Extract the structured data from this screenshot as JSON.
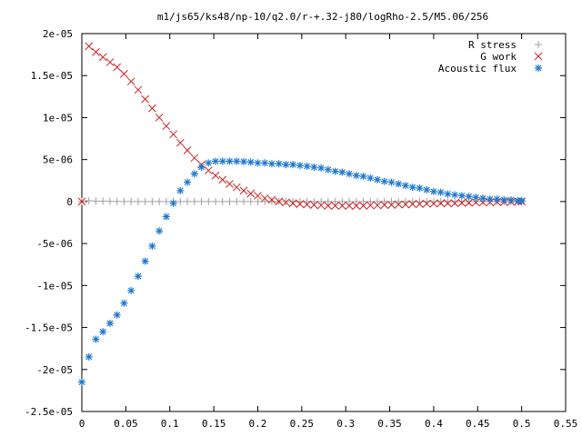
{
  "chart_data": {
    "type": "scatter",
    "title": "m1/js65/ks48/np-10/q2.0/r-+.32-j80/logRho-2.5/M5.06/256",
    "xlim": [
      0,
      0.55
    ],
    "ylim": [
      -2.5e-05,
      2e-05
    ],
    "x_ticks": [
      {
        "v": 0,
        "label": "0"
      },
      {
        "v": 0.05,
        "label": "0.05"
      },
      {
        "v": 0.1,
        "label": "0.1"
      },
      {
        "v": 0.15,
        "label": "0.15"
      },
      {
        "v": 0.2,
        "label": "0.2"
      },
      {
        "v": 0.25,
        "label": "0.25"
      },
      {
        "v": 0.3,
        "label": "0.3"
      },
      {
        "v": 0.35,
        "label": "0.35"
      },
      {
        "v": 0.4,
        "label": "0.4"
      },
      {
        "v": 0.45,
        "label": "0.45"
      },
      {
        "v": 0.5,
        "label": "0.5"
      },
      {
        "v": 0.55,
        "label": "0.55"
      }
    ],
    "y_ticks": [
      {
        "v": 2e-05,
        "label": "2e-05"
      },
      {
        "v": 1.5e-05,
        "label": "1.5e-05"
      },
      {
        "v": 1e-05,
        "label": "1e-05"
      },
      {
        "v": 5e-06,
        "label": "5e-06"
      },
      {
        "v": 0,
        "label": "0"
      },
      {
        "v": -5e-06,
        "label": "-5e-06"
      },
      {
        "v": -1e-05,
        "label": "-1e-05"
      },
      {
        "v": -1.5e-05,
        "label": "-1.5e-05"
      },
      {
        "v": -2e-05,
        "label": "-2e-05"
      },
      {
        "v": -2.5e-05,
        "label": "-2.5e-05"
      }
    ],
    "grid": false,
    "legend_position": "top-right",
    "series": [
      {
        "name": "R stress",
        "marker": "plus",
        "color": "#a0a0a0",
        "x": [
          0.0,
          0.008,
          0.016,
          0.024,
          0.032,
          0.04,
          0.048,
          0.056,
          0.064,
          0.072,
          0.08,
          0.088,
          0.096,
          0.104,
          0.112,
          0.12,
          0.128,
          0.136,
          0.144,
          0.152,
          0.16,
          0.168,
          0.176,
          0.184,
          0.192,
          0.2,
          0.208,
          0.216,
          0.224,
          0.232,
          0.24,
          0.248,
          0.256,
          0.264,
          0.272,
          0.28,
          0.288,
          0.296,
          0.304,
          0.312,
          0.32,
          0.328,
          0.336,
          0.344,
          0.352,
          0.36,
          0.368,
          0.376,
          0.384,
          0.392,
          0.4,
          0.408,
          0.416,
          0.424,
          0.432,
          0.44,
          0.448,
          0.456,
          0.464,
          0.472,
          0.48,
          0.488,
          0.496,
          0.5
        ],
        "y": [
          0,
          1e-07,
          5e-08,
          5e-08,
          2e-08,
          1e-08,
          0,
          0,
          0,
          0,
          0,
          0,
          0,
          0,
          0,
          0,
          0,
          0,
          0,
          0,
          0,
          0,
          0,
          0,
          0,
          0,
          0,
          0,
          0,
          0,
          0,
          0,
          0,
          0,
          0,
          0,
          0,
          0,
          0,
          0,
          0,
          0,
          0,
          0,
          0,
          0,
          0,
          0,
          0,
          0,
          0,
          0,
          0,
          0,
          0,
          0,
          0,
          0,
          0,
          0,
          0,
          0,
          0,
          0
        ]
      },
      {
        "name": "G work",
        "marker": "cross",
        "color": "#d02020",
        "x": [
          0.0,
          0.008,
          0.016,
          0.024,
          0.032,
          0.04,
          0.048,
          0.056,
          0.064,
          0.072,
          0.08,
          0.088,
          0.096,
          0.104,
          0.112,
          0.12,
          0.128,
          0.136,
          0.144,
          0.152,
          0.16,
          0.168,
          0.176,
          0.184,
          0.192,
          0.2,
          0.208,
          0.216,
          0.224,
          0.232,
          0.24,
          0.248,
          0.256,
          0.264,
          0.272,
          0.28,
          0.288,
          0.296,
          0.304,
          0.312,
          0.32,
          0.328,
          0.336,
          0.344,
          0.352,
          0.36,
          0.368,
          0.376,
          0.384,
          0.392,
          0.4,
          0.408,
          0.416,
          0.424,
          0.432,
          0.44,
          0.448,
          0.456,
          0.464,
          0.472,
          0.48,
          0.488,
          0.496,
          0.5
        ],
        "y": [
          0,
          1.85e-05,
          1.78e-05,
          1.72e-05,
          1.66e-05,
          1.6e-05,
          1.52e-05,
          1.43e-05,
          1.33e-05,
          1.22e-05,
          1.11e-05,
          1e-05,
          9e-06,
          8e-06,
          7e-06,
          6.1e-06,
          5.2e-06,
          4.4e-06,
          3.7e-06,
          3.1e-06,
          2.6e-06,
          2.1e-06,
          1.7e-06,
          1.3e-06,
          9.5e-07,
          7e-07,
          4e-07,
          2e-07,
          0,
          -1e-07,
          -2e-07,
          -3e-07,
          -3.5e-07,
          -4e-07,
          -4.5e-07,
          -5e-07,
          -5e-07,
          -5e-07,
          -5e-07,
          -5e-07,
          -5e-07,
          -4.5e-07,
          -4.5e-07,
          -4e-07,
          -4e-07,
          -3.5e-07,
          -3.5e-07,
          -3e-07,
          -3e-07,
          -2.5e-07,
          -2.5e-07,
          -2e-07,
          -2e-07,
          -2e-07,
          -1.5e-07,
          -1.5e-07,
          -1e-07,
          -1e-07,
          -1e-07,
          -5e-08,
          -5e-08,
          -5e-08,
          0,
          0
        ]
      },
      {
        "name": "Acoustic flux",
        "marker": "star",
        "color": "#1e78d0",
        "x": [
          0.0,
          0.008,
          0.016,
          0.024,
          0.032,
          0.04,
          0.048,
          0.056,
          0.064,
          0.072,
          0.08,
          0.088,
          0.096,
          0.104,
          0.112,
          0.12,
          0.128,
          0.136,
          0.144,
          0.152,
          0.16,
          0.168,
          0.176,
          0.184,
          0.192,
          0.2,
          0.208,
          0.216,
          0.224,
          0.232,
          0.24,
          0.248,
          0.256,
          0.264,
          0.272,
          0.28,
          0.288,
          0.296,
          0.304,
          0.312,
          0.32,
          0.328,
          0.336,
          0.344,
          0.352,
          0.36,
          0.368,
          0.376,
          0.384,
          0.392,
          0.4,
          0.408,
          0.416,
          0.424,
          0.432,
          0.44,
          0.448,
          0.456,
          0.464,
          0.472,
          0.48,
          0.488,
          0.496,
          0.5
        ],
        "y": [
          -2.15e-05,
          -1.85e-05,
          -1.64e-05,
          -1.55e-05,
          -1.45e-05,
          -1.35e-05,
          -1.21e-05,
          -1.06e-05,
          -8.9e-06,
          -7.1e-06,
          -5.3e-06,
          -3.5e-06,
          -1.8e-06,
          -2e-07,
          1.3e-06,
          2.3e-06,
          3.3e-06,
          4.1e-06,
          4.6e-06,
          4.8e-06,
          4.8e-06,
          4.8e-06,
          4.8e-06,
          4.75e-06,
          4.7e-06,
          4.6e-06,
          4.6e-06,
          4.5e-06,
          4.5e-06,
          4.4e-06,
          4.4e-06,
          4.3e-06,
          4.2e-06,
          4.1e-06,
          4e-06,
          3.8e-06,
          3.6e-06,
          3.5e-06,
          3.3e-06,
          3.1e-06,
          3e-06,
          2.8e-06,
          2.6e-06,
          2.4e-06,
          2.3e-06,
          2.1e-06,
          1.9e-06,
          1.7e-06,
          1.6e-06,
          1.4e-06,
          1.2e-06,
          1.1e-06,
          9e-07,
          8e-07,
          7e-07,
          6e-07,
          5e-07,
          4e-07,
          3e-07,
          3e-07,
          2e-07,
          2e-07,
          1e-07,
          1e-07
        ]
      }
    ]
  }
}
